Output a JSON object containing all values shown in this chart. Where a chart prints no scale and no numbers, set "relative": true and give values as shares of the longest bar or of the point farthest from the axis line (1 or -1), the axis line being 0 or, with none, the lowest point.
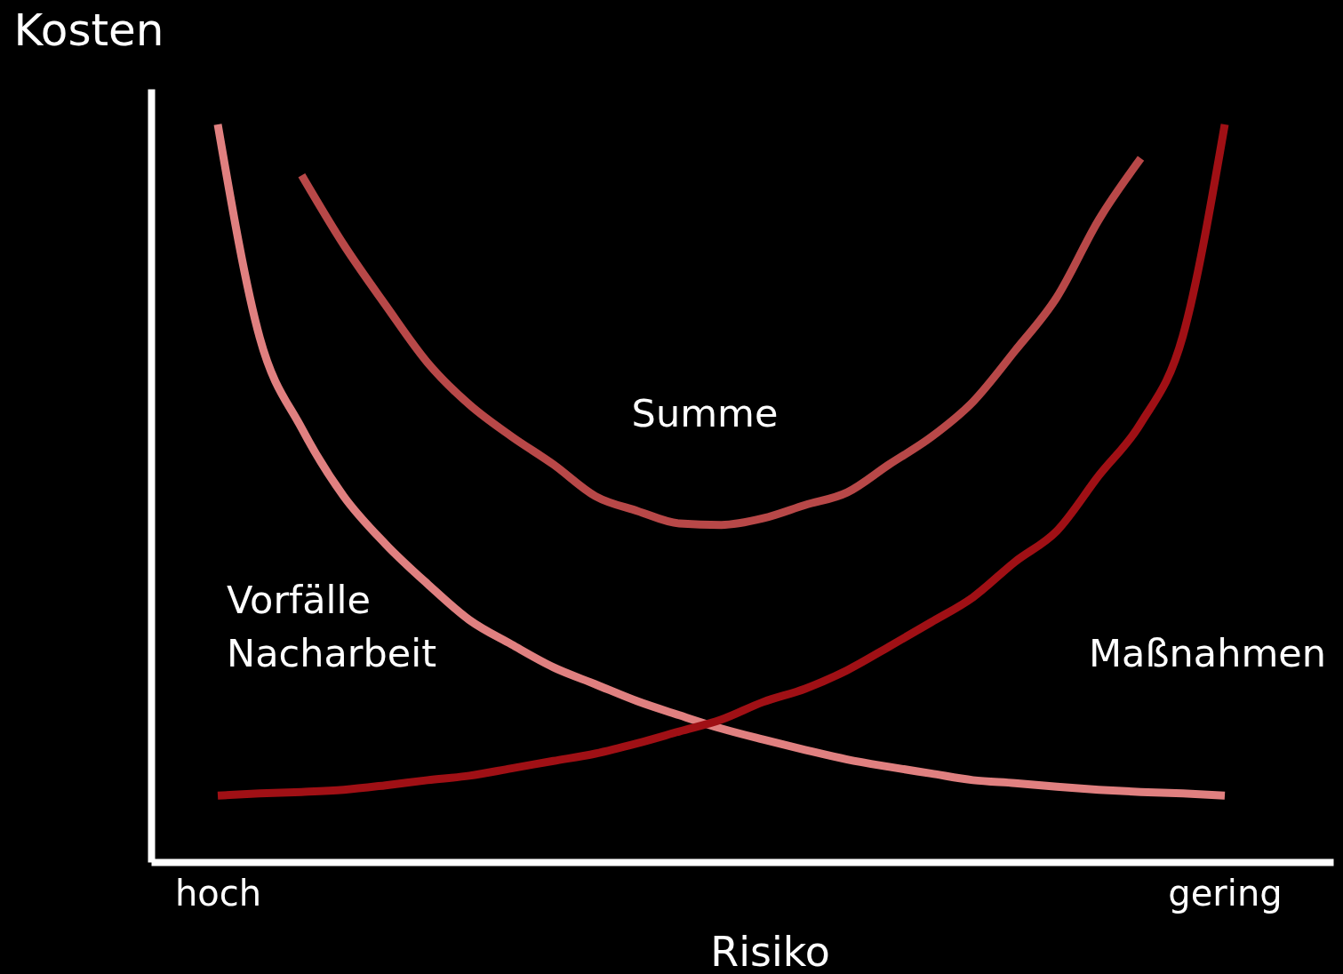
{
  "chart_data": {
    "type": "line",
    "relative": true,
    "ylabel": "Kosten",
    "xlabel": "Risiko",
    "categories": [
      "hoch",
      null,
      null,
      null,
      null,
      null,
      null,
      null,
      null,
      null,
      null,
      null,
      null,
      null,
      null,
      null,
      null,
      null,
      null,
      null,
      null,
      null,
      null,
      null,
      "gering"
    ],
    "grid": false,
    "legend": false,
    "marker": "none",
    "line_style": "solid",
    "tick_labels": "x",
    "series": [
      {
        "name": "Vorfälle\nNacharbeit",
        "color": "#e08080",
        "values": [
          1.0,
          0.711,
          0.588,
          0.496,
          0.431,
          0.377,
          0.328,
          0.295,
          0.264,
          0.241,
          0.218,
          0.199,
          0.181,
          0.166,
          0.152,
          0.139,
          0.129,
          0.12,
          0.111,
          0.107,
          0.102,
          0.098,
          0.095,
          0.093,
          0.09
        ]
      },
      {
        "name": "Maßnahmen",
        "color": "#a01015",
        "values": [
          0.09,
          0.093,
          0.095,
          0.098,
          0.104,
          0.111,
          0.117,
          0.127,
          0.137,
          0.147,
          0.161,
          0.177,
          0.193,
          0.217,
          0.235,
          0.26,
          0.292,
          0.325,
          0.359,
          0.407,
          0.449,
          0.524,
          0.595,
          0.713,
          1.0
        ]
      },
      {
        "name": "Summe",
        "color": "#b84848",
        "values": [
          null,
          null,
          0.931,
          0.837,
          0.755,
          0.677,
          0.62,
          0.577,
          0.539,
          0.496,
          0.476,
          0.459,
          0.457,
          0.466,
          0.484,
          0.501,
          0.539,
          0.576,
          0.624,
          0.693,
          0.766,
          0.871,
          0.954,
          null,
          null
        ]
      }
    ]
  }
}
